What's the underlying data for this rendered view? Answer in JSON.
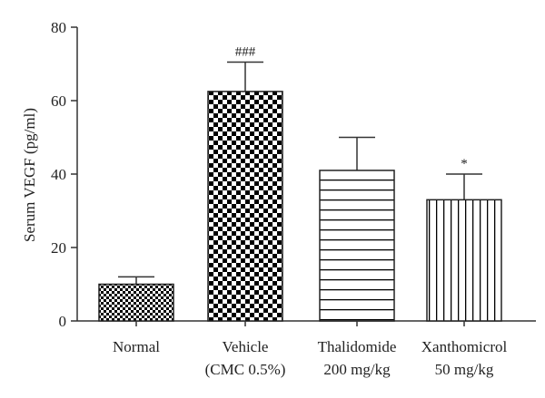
{
  "chart_data": {
    "type": "bar",
    "title": "",
    "ylabel": "Serum VEGF (pg/ml)",
    "xlabel": "",
    "ylim": [
      0,
      80
    ],
    "yticks": [
      0,
      20,
      40,
      60,
      80
    ],
    "grid": false,
    "categories": [
      {
        "lines": [
          "Normal"
        ]
      },
      {
        "lines": [
          "Vehicle",
          "(CMC 0.5%)"
        ]
      },
      {
        "lines": [
          "Thalidomide",
          "200 mg/kg"
        ]
      },
      {
        "lines": [
          "Xanthomicrol",
          "50 mg/kg"
        ]
      }
    ],
    "values": [
      10,
      62.5,
      41,
      33
    ],
    "errors": [
      2,
      8,
      9,
      7
    ],
    "annotations": [
      "",
      "###",
      "",
      "*"
    ],
    "patterns": [
      "checker-small",
      "checker-large",
      "horizontal-lines",
      "vertical-lines"
    ]
  }
}
